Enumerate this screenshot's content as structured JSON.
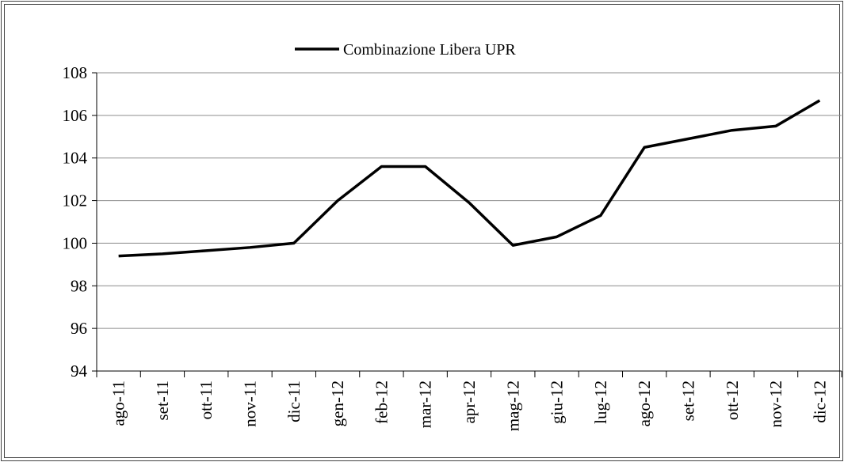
{
  "chart_data": {
    "type": "line",
    "categories": [
      "ago-11",
      "set-11",
      "ott-11",
      "nov-11",
      "dic-11",
      "gen-12",
      "feb-12",
      "mar-12",
      "apr-12",
      "mag-12",
      "giu-12",
      "lug-12",
      "ago-12",
      "set-12",
      "ott-12",
      "nov-12",
      "dic-12"
    ],
    "series": [
      {
        "name": "Combinazione Libera UPR",
        "color": "#000000",
        "values": [
          99.4,
          99.5,
          99.65,
          99.8,
          100.0,
          102.0,
          103.6,
          103.6,
          101.9,
          99.9,
          100.3,
          101.3,
          104.5,
          104.9,
          105.3,
          105.5,
          106.7
        ]
      }
    ],
    "ylim": [
      94,
      108
    ],
    "yticks": [
      94,
      96,
      98,
      100,
      102,
      104,
      106,
      108
    ],
    "grid": true,
    "legend": "top"
  }
}
